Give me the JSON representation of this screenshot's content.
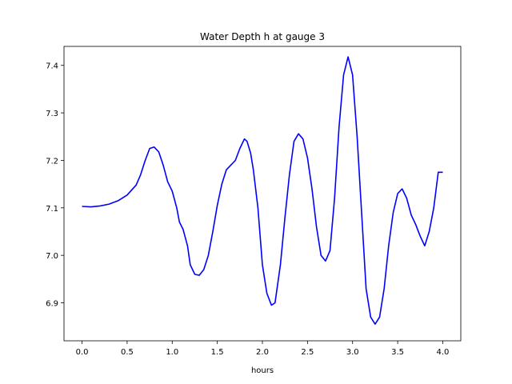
{
  "chart_data": {
    "type": "line",
    "title": "Water Depth h at gauge 3",
    "xlabel": "hours",
    "ylabel": "",
    "xlim": [
      -0.2,
      4.2
    ],
    "ylim": [
      6.82,
      7.44
    ],
    "xticks": [
      0.0,
      0.5,
      1.0,
      1.5,
      2.0,
      2.5,
      3.0,
      3.5,
      4.0
    ],
    "xtick_labels": [
      "0.0",
      "0.5",
      "1.0",
      "1.5",
      "2.0",
      "2.5",
      "3.0",
      "3.5",
      "4.0"
    ],
    "yticks": [
      6.9,
      7.0,
      7.1,
      7.2,
      7.3,
      7.4
    ],
    "ytick_labels": [
      "6.9",
      "7.0",
      "7.1",
      "7.2",
      "7.3",
      "7.4"
    ],
    "grid": false,
    "series": [
      {
        "color": "#0000ff",
        "x": [
          0.0,
          0.1,
          0.2,
          0.3,
          0.4,
          0.5,
          0.6,
          0.65,
          0.7,
          0.75,
          0.8,
          0.85,
          0.9,
          0.95,
          1.0,
          1.05,
          1.08,
          1.12,
          1.17,
          1.2,
          1.25,
          1.3,
          1.35,
          1.4,
          1.45,
          1.5,
          1.55,
          1.6,
          1.65,
          1.7,
          1.75,
          1.8,
          1.83,
          1.87,
          1.9,
          1.95,
          2.0,
          2.05,
          2.1,
          2.14,
          2.2,
          2.25,
          2.3,
          2.35,
          2.4,
          2.45,
          2.5,
          2.55,
          2.6,
          2.65,
          2.7,
          2.75,
          2.8,
          2.85,
          2.9,
          2.95,
          3.0,
          3.05,
          3.1,
          3.15,
          3.2,
          3.25,
          3.3,
          3.35,
          3.4,
          3.45,
          3.5,
          3.55,
          3.6,
          3.65,
          3.7,
          3.75,
          3.8,
          3.85,
          3.9,
          3.95,
          4.0
        ],
        "y": [
          7.103,
          7.102,
          7.104,
          7.108,
          7.115,
          7.127,
          7.148,
          7.17,
          7.2,
          7.225,
          7.228,
          7.218,
          7.19,
          7.155,
          7.135,
          7.1,
          7.07,
          7.055,
          7.02,
          6.98,
          6.96,
          6.958,
          6.97,
          7.0,
          7.05,
          7.105,
          7.15,
          7.18,
          7.19,
          7.2,
          7.225,
          7.245,
          7.24,
          7.215,
          7.18,
          7.1,
          6.98,
          6.92,
          6.895,
          6.9,
          6.98,
          7.08,
          7.17,
          7.24,
          7.256,
          7.245,
          7.205,
          7.14,
          7.06,
          7.0,
          6.988,
          7.01,
          7.12,
          7.27,
          7.38,
          7.418,
          7.38,
          7.25,
          7.09,
          6.93,
          6.87,
          6.855,
          6.87,
          6.93,
          7.02,
          7.09,
          7.13,
          7.14,
          7.12,
          7.085,
          7.065,
          7.04,
          7.02,
          7.05,
          7.1,
          7.175,
          7.175
        ]
      }
    ]
  }
}
